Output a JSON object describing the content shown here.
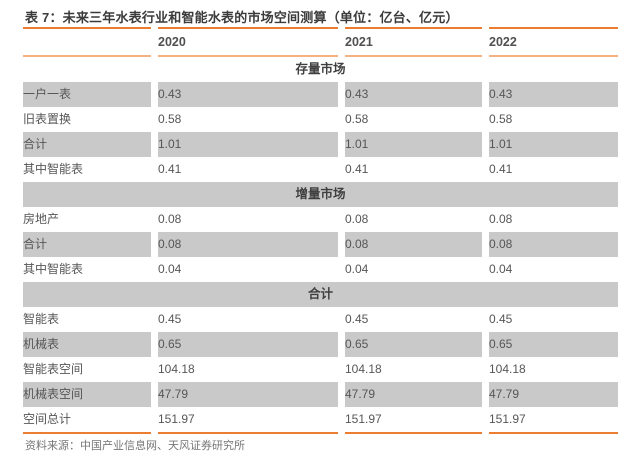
{
  "title": "表 7：未来三年水表行业和智能水表的市场空间测算（单位：亿台、亿元）",
  "source": "资料来源：中国产业信息网、天风证券研究所",
  "colors": {
    "accent_orange": "#ED7D31",
    "accent_orange_light": "#F4B183",
    "stripe_gray": "#C9C9C9"
  },
  "table": {
    "columns": [
      "",
      "2020",
      "2021",
      "2022"
    ],
    "sections": [
      {
        "header": "存量市场",
        "rows": [
          {
            "label": "一户一表",
            "values": [
              "0.43",
              "0.43",
              "0.43"
            ]
          },
          {
            "label": "旧表置换",
            "values": [
              "0.58",
              "0.58",
              "0.58"
            ]
          },
          {
            "label": "合计",
            "values": [
              "1.01",
              "1.01",
              "1.01"
            ]
          },
          {
            "label": "其中智能表",
            "values": [
              "0.41",
              "0.41",
              "0.41"
            ]
          }
        ]
      },
      {
        "header": "增量市场",
        "rows": [
          {
            "label": "房地产",
            "values": [
              "0.08",
              "0.08",
              "0.08"
            ]
          },
          {
            "label": "合计",
            "values": [
              "0.08",
              "0.08",
              "0.08"
            ]
          },
          {
            "label": "其中智能表",
            "values": [
              "0.04",
              "0.04",
              "0.04"
            ]
          }
        ]
      },
      {
        "header": "合计",
        "rows": [
          {
            "label": "智能表",
            "values": [
              "0.45",
              "0.45",
              "0.45"
            ]
          },
          {
            "label": "机械表",
            "values": [
              "0.65",
              "0.65",
              "0.65"
            ]
          },
          {
            "label": "智能表空间",
            "values": [
              "104.18",
              "104.18",
              "104.18"
            ]
          },
          {
            "label": "机械表空间",
            "values": [
              "47.79",
              "47.79",
              "47.79"
            ]
          },
          {
            "label": "空间总计",
            "values": [
              "151.97",
              "151.97",
              "151.97"
            ]
          }
        ]
      }
    ]
  }
}
